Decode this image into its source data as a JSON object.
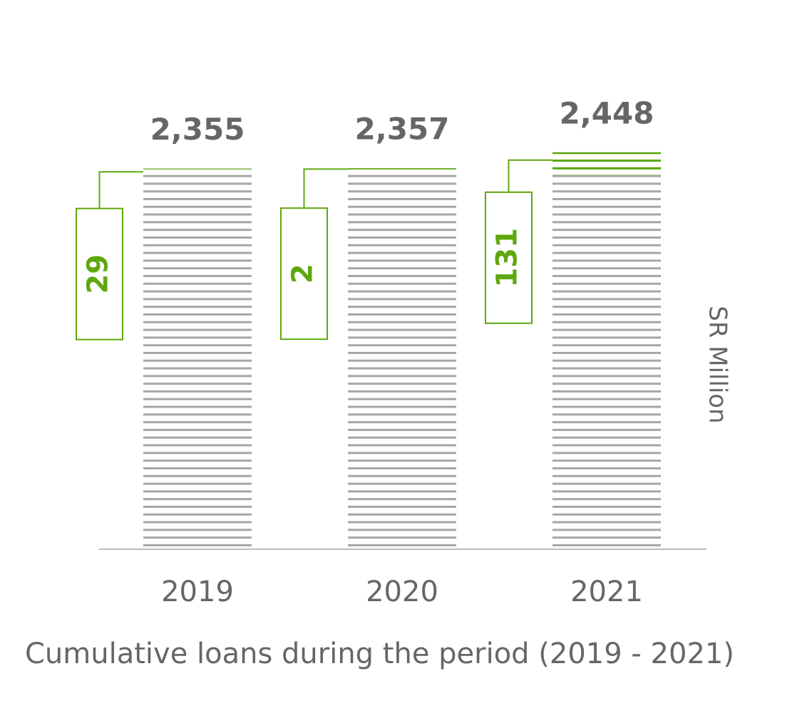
{
  "chart_data": {
    "type": "bar",
    "categories": [
      "2019",
      "2020",
      "2021"
    ],
    "values": [
      2355,
      2357,
      2448
    ],
    "value_labels": [
      "2,355",
      "2,357",
      "2,448"
    ],
    "additions": [
      29,
      2,
      131
    ],
    "color": "#a6a6a6",
    "addition_color": "#5ea80d",
    "ylim": [
      200,
      2500
    ],
    "y_axis_label": "SR Million",
    "caption": "Cumulative loans during the period (2019 - 2021)"
  }
}
